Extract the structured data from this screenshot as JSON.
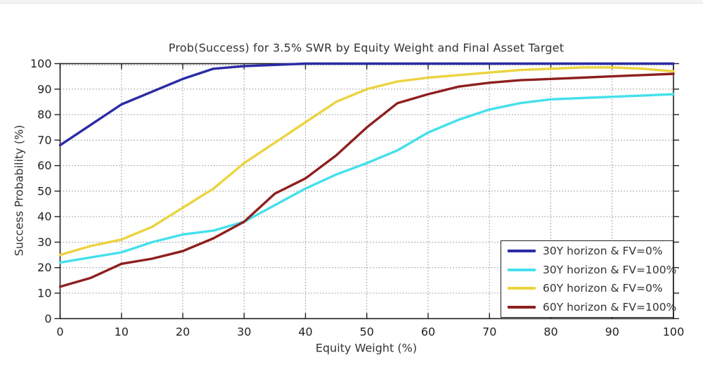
{
  "chart": {
    "title": "Prob(Success) for 3.5% SWR by Equity Weight and Final Asset Target",
    "xlabel": "Equity Weight (%)",
    "ylabel": "Success Probability (%)"
  },
  "chart_data": {
    "type": "line",
    "title": "Prob(Success) for 3.5% SWR by Equity Weight and Final Asset Target",
    "xlabel": "Equity Weight (%)",
    "ylabel": "Success Probability (%)",
    "xlim": [
      0,
      100
    ],
    "ylim": [
      0,
      100
    ],
    "xticks": [
      0,
      10,
      20,
      30,
      40,
      50,
      60,
      70,
      80,
      90,
      100
    ],
    "yticks": [
      0,
      10,
      20,
      30,
      40,
      50,
      60,
      70,
      80,
      90,
      100
    ],
    "grid": true,
    "grid_style": "dotted",
    "legend_position": "lower right",
    "x": [
      0,
      5,
      10,
      15,
      20,
      25,
      30,
      35,
      40,
      45,
      50,
      55,
      60,
      65,
      70,
      75,
      80,
      85,
      90,
      95,
      100
    ],
    "series": [
      {
        "name": "30Y horizon & FV=0%",
        "color": "#2b2ba6",
        "values": [
          68,
          76,
          84,
          89,
          94,
          98,
          99,
          99.5,
          100,
          100,
          100,
          100,
          100,
          100,
          100,
          100,
          100,
          100,
          100,
          100,
          100
        ]
      },
      {
        "name": "30Y horizon & FV=100%",
        "color": "#45e0ec",
        "values": [
          22,
          24,
          26,
          30,
          33,
          34.5,
          38,
          44.5,
          51,
          56.5,
          61,
          66,
          73,
          78,
          82,
          84.5,
          86,
          86.5,
          87,
          87.5,
          88
        ]
      },
      {
        "name": "60Y horizon & FV=0%",
        "color": "#ecd33f",
        "values": [
          25,
          28.5,
          31,
          36,
          43.5,
          51,
          61,
          69,
          77,
          85,
          90,
          93,
          94.5,
          95.5,
          96.5,
          97.5,
          98,
          98.5,
          98.5,
          98,
          97
        ]
      },
      {
        "name": "60Y horizon & FV=100%",
        "color": "#8e1f1f",
        "values": [
          12.5,
          16,
          21.5,
          23.5,
          26.5,
          31.5,
          38,
          49,
          55,
          64,
          75,
          84.5,
          88,
          91,
          92.5,
          93.5,
          94,
          94.5,
          95,
          95.5,
          96
        ]
      }
    ]
  }
}
